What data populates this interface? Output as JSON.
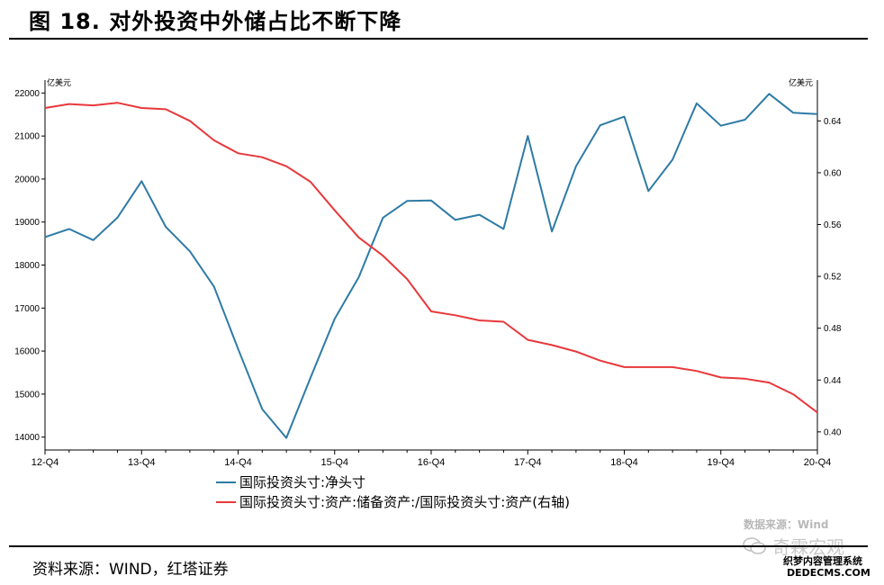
{
  "header": {
    "title": "图 18. 对外投资中外储占比不断下降"
  },
  "footer": {
    "source": "资料来源：WIND，红塔证券"
  },
  "watermark": {
    "line1": "数据来源：Wind",
    "line2": "奇霖宏观",
    "line3": "织梦内容管理系统",
    "line4": "DEDECMS.COM"
  },
  "colors": {
    "series_blue": "#2e7ba6",
    "series_red": "#e8383b",
    "axis": "#000000"
  },
  "chart_data": {
    "type": "line",
    "left_unit": "亿美元",
    "right_unit": "亿美元",
    "x": [
      "12-Q4",
      "13-Q1",
      "13-Q2",
      "13-Q3",
      "13-Q4",
      "14-Q1",
      "14-Q2",
      "14-Q3",
      "14-Q4",
      "15-Q1",
      "15-Q2",
      "15-Q3",
      "15-Q4",
      "16-Q1",
      "16-Q2",
      "16-Q3",
      "16-Q4",
      "17-Q1",
      "17-Q2",
      "17-Q3",
      "17-Q4",
      "18-Q1",
      "18-Q2",
      "18-Q3",
      "18-Q4",
      "19-Q1",
      "19-Q2",
      "19-Q3",
      "19-Q4",
      "20-Q1",
      "20-Q2",
      "20-Q3",
      "20-Q4"
    ],
    "x_tick_labels": [
      "12-Q4",
      "13-Q4",
      "14-Q4",
      "15-Q4",
      "16-Q4",
      "17-Q4",
      "18-Q4",
      "19-Q4",
      "20-Q4"
    ],
    "y_left": {
      "min": 13700,
      "max": 22300,
      "ticks": [
        14000,
        15000,
        16000,
        17000,
        18000,
        19000,
        20000,
        21000,
        22000
      ]
    },
    "y_right": {
      "min": 0.386,
      "max": 0.6715,
      "ticks": [
        "0.40",
        "0.44",
        "0.48",
        "0.52",
        "0.56",
        "0.60",
        "0.64"
      ]
    },
    "series": [
      {
        "name": "国际投资头寸:净头寸",
        "axis": "left",
        "values": [
          18650,
          18840,
          18580,
          19100,
          19950,
          18890,
          18320,
          17500,
          16050,
          14650,
          13980,
          15380,
          16750,
          17720,
          19100,
          19490,
          19500,
          19050,
          19170,
          18840,
          21000,
          18780,
          20300,
          21250,
          21450,
          19720,
          20450,
          21760,
          21240,
          21380,
          21980,
          21540,
          21510
        ]
      },
      {
        "name": "国际投资头寸:资产:储备资产:/国际投资头寸:资产(右轴)",
        "axis": "right",
        "values": [
          0.65,
          0.653,
          0.652,
          0.654,
          0.65,
          0.649,
          0.64,
          0.625,
          0.615,
          0.612,
          0.605,
          0.593,
          0.571,
          0.55,
          0.536,
          0.518,
          0.493,
          0.49,
          0.486,
          0.485,
          0.471,
          0.467,
          0.462,
          0.455,
          0.45,
          0.45,
          0.45,
          0.447,
          0.442,
          0.441,
          0.438,
          0.429,
          0.415
        ]
      }
    ]
  }
}
